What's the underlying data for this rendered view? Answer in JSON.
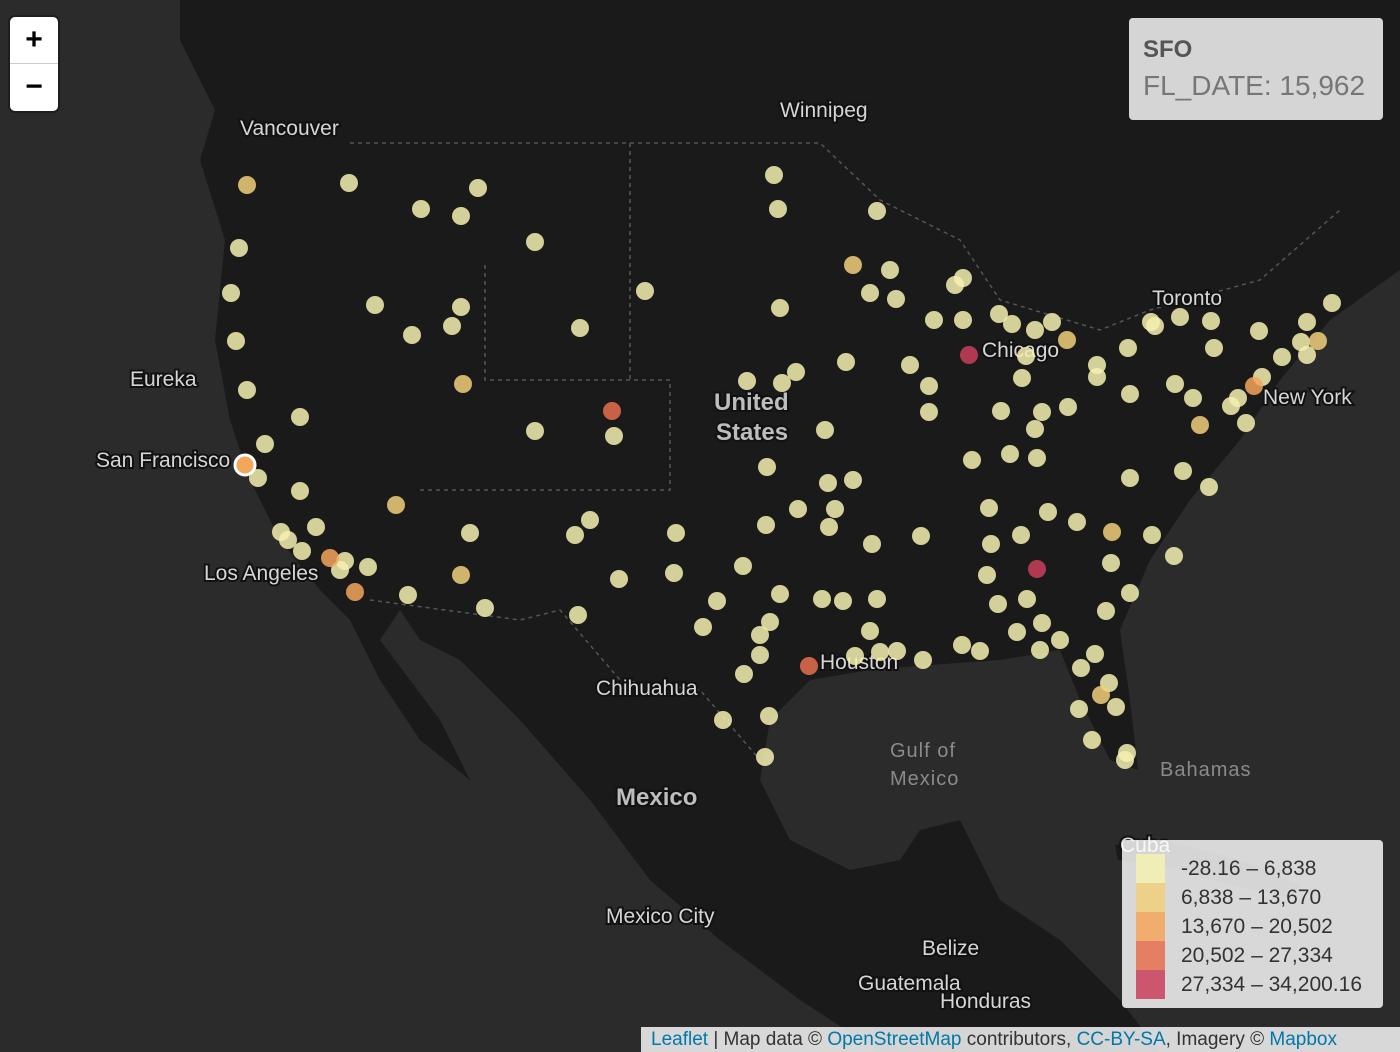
{
  "zoom": {
    "in": "+",
    "out": "−"
  },
  "info": {
    "title": "SFO",
    "value": "FL_DATE: 15,962"
  },
  "labels": [
    "Vancouver",
    "Winnipeg",
    "Eureka",
    "San Francisco",
    "Los Angeles",
    "Chicago",
    "Toronto",
    "New York",
    "Houston",
    "Chihuahua",
    "United",
    "States",
    "Mexico",
    "Mexico City",
    "Gulf of",
    "Mexico",
    "Bahamas",
    "Cuba",
    "Belize",
    "Guatemala",
    "Honduras"
  ],
  "legend": {
    "items": [
      {
        "label": "-28.16 – 6,838",
        "color": "#f6f1b0"
      },
      {
        "label": "6,838 – 13,670",
        "color": "#f2d07a"
      },
      {
        "label": "13,670 – 20,502",
        "color": "#f4a65a"
      },
      {
        "label": "20,502 – 27,334",
        "color": "#e8704f"
      },
      {
        "label": "27,334 – 34,200.16",
        "color": "#c93f5c"
      }
    ]
  },
  "attribution": {
    "parts": [
      "Leaflet",
      " | Map data © ",
      "OpenStreetMap",
      " contributors, ",
      "CC-BY-SA",
      ", Imagery © ",
      "Mapbox"
    ]
  }
}
